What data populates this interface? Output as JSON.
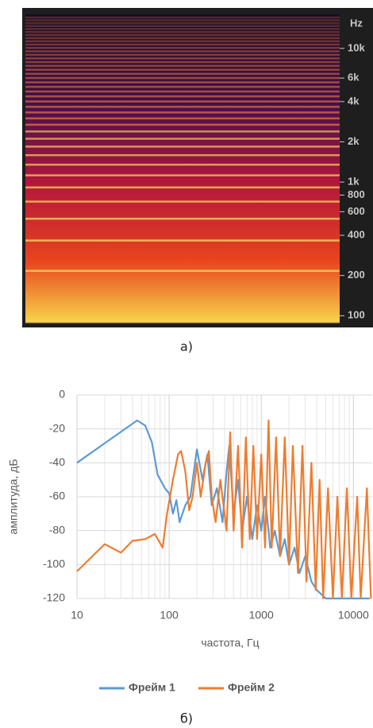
{
  "chart_data": [
    {
      "type": "spectrogram",
      "y_label": "Hz",
      "log_y": true,
      "ylim": [
        90,
        18000
      ],
      "yticks": [
        {
          "value": 10000,
          "label": "10k"
        },
        {
          "value": 6000,
          "label": "6k"
        },
        {
          "value": 4000,
          "label": "4k"
        },
        {
          "value": 2000,
          "label": "2k"
        },
        {
          "value": 1000,
          "label": "1k"
        },
        800,
        600,
        400,
        200,
        100
      ],
      "caption": "а)"
    },
    {
      "type": "line",
      "xlabel": "частота, Гц",
      "ylabel": "амплитуда, дБ",
      "log_x": true,
      "grid": true,
      "legend": "bottom",
      "xlim": [
        10,
        16000
      ],
      "ylim": [
        -120,
        0
      ],
      "xticks": [
        10,
        100,
        1000,
        10000
      ],
      "xminor": [
        20,
        30,
        40,
        50,
        60,
        70,
        80,
        90,
        200,
        300,
        400,
        500,
        600,
        700,
        800,
        900,
        2000,
        3000,
        4000,
        5000,
        6000,
        7000,
        8000,
        9000
      ],
      "yticks": [
        0,
        -20,
        -40,
        -60,
        -80,
        -100,
        -120
      ],
      "series": [
        {
          "name": "Фрейм 1",
          "color": "#5b9bd5",
          "x": [
            10,
            45,
            55,
            65,
            75,
            90,
            100,
            110,
            120,
            130,
            150,
            170,
            200,
            230,
            260,
            290,
            330,
            380,
            420,
            450,
            500,
            560,
            620,
            700,
            800,
            900,
            1000,
            1100,
            1250,
            1400,
            1600,
            1800,
            2000,
            2300,
            2600,
            3000,
            3500,
            4000,
            5000,
            7000,
            10000,
            15000
          ],
          "values": [
            -40,
            -15,
            -18,
            -28,
            -47,
            -55,
            -58,
            -70,
            -62,
            -75,
            -65,
            -60,
            -32,
            -50,
            -35,
            -65,
            -55,
            -75,
            -45,
            -30,
            -70,
            -50,
            -80,
            -60,
            -85,
            -65,
            -80,
            -60,
            -90,
            -80,
            -95,
            -85,
            -100,
            -90,
            -105,
            -95,
            -110,
            -115,
            -120,
            -120,
            -120,
            -120
          ]
        },
        {
          "name": "Фрейм 2",
          "color": "#ed7d31",
          "x": [
            10,
            20,
            30,
            40,
            55,
            70,
            85,
            95,
            110,
            125,
            135,
            150,
            165,
            180,
            200,
            220,
            250,
            270,
            290,
            320,
            360,
            420,
            460,
            500,
            560,
            620,
            680,
            750,
            820,
            900,
            1000,
            1100,
            1200,
            1300,
            1450,
            1600,
            1800,
            2000,
            2200,
            2500,
            2800,
            3100,
            3500,
            3900,
            4300,
            4700,
            5300,
            6000,
            6700,
            7500,
            8500,
            9500,
            11000,
            12000,
            14000,
            15500
          ],
          "values": [
            -104,
            -88,
            -93,
            -86,
            -85,
            -82,
            -90,
            -70,
            -50,
            -35,
            -33,
            -45,
            -68,
            -60,
            -40,
            -60,
            -40,
            -33,
            -60,
            -75,
            -50,
            -80,
            -22,
            -80,
            -30,
            -90,
            -25,
            -85,
            -30,
            -85,
            -35,
            -90,
            -15,
            -90,
            -25,
            -95,
            -25,
            -100,
            -30,
            -105,
            -30,
            -110,
            -40,
            -115,
            -50,
            -120,
            -55,
            -120,
            -60,
            -120,
            -55,
            -120,
            -60,
            -120,
            -55,
            -120
          ]
        }
      ],
      "caption": "б)"
    }
  ]
}
